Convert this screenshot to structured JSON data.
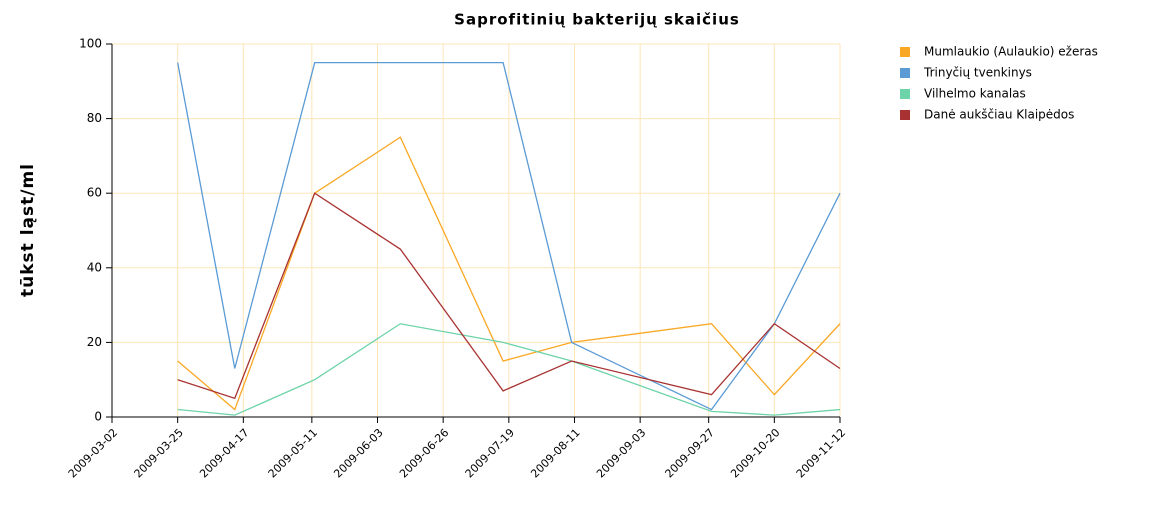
{
  "chart_data": {
    "type": "line",
    "title": "Saprofitinių bakterijų skaičius",
    "y_label": "tūkst ląst/ml",
    "x": [
      "2009-03-25",
      "2009-04-14",
      "2009-05-12",
      "2009-06-11",
      "2009-07-17",
      "2009-08-10",
      "2009-09-28",
      "2009-10-20",
      "2009-11-12"
    ],
    "series": [
      {
        "name": "Mumlaukio (Aulaukio) ežeras",
        "color": "#f9a825",
        "values": [
          15,
          2,
          60,
          75,
          15,
          20,
          25,
          6,
          25
        ]
      },
      {
        "name": "Trinyčių tvenkinys",
        "color": "#5b9bd5",
        "values": [
          95,
          13,
          95,
          95,
          95,
          20,
          2,
          25,
          60
        ]
      },
      {
        "name": "Vilhelmo kanalas",
        "color": "#6dd3a8",
        "values": [
          2,
          0.5,
          10,
          25,
          20,
          15,
          1.5,
          0.5,
          2
        ]
      },
      {
        "name": "Danė aukščiau Klaipėdos",
        "color": "#a83232",
        "values": [
          10,
          5,
          60,
          45,
          7,
          15,
          6,
          25,
          13
        ]
      }
    ],
    "xlim": [
      "2009-03-02",
      "2009-11-12"
    ],
    "xticks": [
      "2009-03-02",
      "2009-03-25",
      "2009-04-17",
      "2009-05-11",
      "2009-06-03",
      "2009-06-26",
      "2009-07-19",
      "2009-08-11",
      "2009-09-03",
      "2009-09-27",
      "2009-10-20",
      "2009-11-12"
    ],
    "ylim": [
      0,
      100
    ],
    "yticks": [
      0,
      20,
      40,
      60,
      80,
      100
    ],
    "grid": true,
    "legend": "right"
  }
}
